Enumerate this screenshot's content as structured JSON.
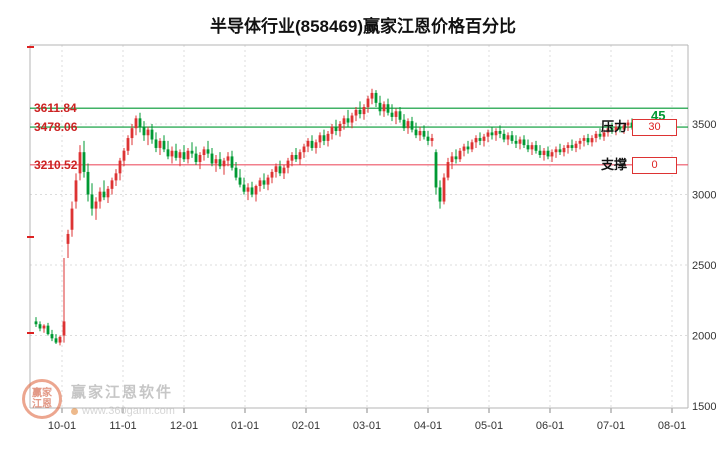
{
  "title": "半导体行业(858469)赢家江恩价格百分比",
  "annotations": {
    "gann_value_label": "45",
    "pressure_label": "压力",
    "pressure_value": "30",
    "support_label": "支撑",
    "support_value": "0"
  },
  "watermark": {
    "brand": "赢家江恩软件",
    "url": "www.360gann.com",
    "logo_text": "赢家江恩"
  },
  "chart_data": {
    "type": "candlestick",
    "title": "半导体行业(858469)赢家江恩价格百分比",
    "x_labels": [
      "10-01",
      "11-01",
      "12-01",
      "01-01",
      "02-01",
      "03-01",
      "04-01",
      "05-01",
      "06-01",
      "07-01",
      "08-01"
    ],
    "y_ticks": [
      3500,
      3000,
      2500,
      2000,
      1500
    ],
    "ylim": [
      1486,
      4060
    ],
    "up_color": "#dd3333",
    "down_color": "#009933",
    "grid": true,
    "legend": "none",
    "levels": [
      {
        "price": 3611.84,
        "color": "#009933",
        "role": "gann-45"
      },
      {
        "price": 3478.06,
        "color": "#009933",
        "role": "pressure-30"
      },
      {
        "price": 3210.52,
        "color": "#ee5566",
        "role": "support-0"
      }
    ],
    "candles": [
      [
        2100,
        2130,
        2060,
        2080
      ],
      [
        2080,
        2100,
        2030,
        2050
      ],
      [
        2050,
        2080,
        2020,
        2070
      ],
      [
        2070,
        2090,
        2000,
        2010
      ],
      [
        2010,
        2040,
        1960,
        1980
      ],
      [
        1980,
        2010,
        1940,
        1950
      ],
      [
        1950,
        2000,
        1930,
        1990
      ],
      [
        2000,
        2550,
        1950,
        2100
      ],
      [
        2650,
        2750,
        2550,
        2720
      ],
      [
        2750,
        2950,
        2700,
        2900
      ],
      [
        2950,
        3150,
        2900,
        3100
      ],
      [
        3150,
        3350,
        3100,
        3300
      ],
      [
        3300,
        3380,
        3120,
        3160
      ],
      [
        3160,
        3220,
        2950,
        3000
      ],
      [
        3000,
        3080,
        2850,
        2900
      ],
      [
        2900,
        2980,
        2820,
        2950
      ],
      [
        2950,
        3050,
        2900,
        3020
      ],
      [
        3020,
        3100,
        2960,
        2980
      ],
      [
        2980,
        3060,
        2940,
        3040
      ],
      [
        3040,
        3120,
        3000,
        3100
      ],
      [
        3100,
        3180,
        3060,
        3150
      ],
      [
        3150,
        3260,
        3100,
        3240
      ],
      [
        3240,
        3330,
        3200,
        3310
      ],
      [
        3310,
        3420,
        3280,
        3400
      ],
      [
        3400,
        3500,
        3350,
        3470
      ],
      [
        3470,
        3560,
        3420,
        3540
      ],
      [
        3540,
        3580,
        3440,
        3480
      ],
      [
        3480,
        3520,
        3380,
        3420
      ],
      [
        3420,
        3480,
        3350,
        3460
      ],
      [
        3460,
        3500,
        3360,
        3390
      ],
      [
        3390,
        3440,
        3300,
        3330
      ],
      [
        3330,
        3400,
        3280,
        3380
      ],
      [
        3380,
        3420,
        3300,
        3320
      ],
      [
        3320,
        3380,
        3250,
        3270
      ],
      [
        3270,
        3340,
        3220,
        3310
      ],
      [
        3310,
        3360,
        3240,
        3260
      ],
      [
        3260,
        3320,
        3200,
        3300
      ],
      [
        3300,
        3350,
        3230,
        3250
      ],
      [
        3250,
        3330,
        3220,
        3310
      ],
      [
        3310,
        3370,
        3260,
        3290
      ],
      [
        3290,
        3340,
        3210,
        3230
      ],
      [
        3230,
        3300,
        3180,
        3280
      ],
      [
        3280,
        3340,
        3240,
        3320
      ],
      [
        3320,
        3380,
        3260,
        3290
      ],
      [
        3290,
        3330,
        3200,
        3220
      ],
      [
        3220,
        3280,
        3160,
        3250
      ],
      [
        3250,
        3300,
        3180,
        3200
      ],
      [
        3200,
        3260,
        3140,
        3240
      ],
      [
        3240,
        3300,
        3200,
        3270
      ],
      [
        3270,
        3310,
        3170,
        3190
      ],
      [
        3190,
        3230,
        3100,
        3120
      ],
      [
        3120,
        3180,
        3050,
        3070
      ],
      [
        3070,
        3120,
        3000,
        3020
      ],
      [
        3020,
        3080,
        2960,
        3050
      ],
      [
        3050,
        3090,
        2980,
        3000
      ],
      [
        3000,
        3070,
        2950,
        3060
      ],
      [
        3060,
        3120,
        3020,
        3100
      ],
      [
        3100,
        3150,
        3040,
        3070
      ],
      [
        3070,
        3140,
        3030,
        3120
      ],
      [
        3120,
        3180,
        3080,
        3160
      ],
      [
        3160,
        3220,
        3120,
        3200
      ],
      [
        3200,
        3240,
        3130,
        3150
      ],
      [
        3150,
        3210,
        3110,
        3190
      ],
      [
        3190,
        3260,
        3150,
        3240
      ],
      [
        3240,
        3300,
        3200,
        3280
      ],
      [
        3280,
        3330,
        3230,
        3250
      ],
      [
        3250,
        3320,
        3210,
        3300
      ],
      [
        3300,
        3360,
        3260,
        3340
      ],
      [
        3340,
        3400,
        3300,
        3380
      ],
      [
        3380,
        3420,
        3310,
        3330
      ],
      [
        3330,
        3390,
        3290,
        3370
      ],
      [
        3370,
        3440,
        3330,
        3420
      ],
      [
        3420,
        3460,
        3350,
        3380
      ],
      [
        3380,
        3450,
        3340,
        3430
      ],
      [
        3430,
        3500,
        3390,
        3480
      ],
      [
        3480,
        3530,
        3420,
        3450
      ],
      [
        3450,
        3520,
        3410,
        3500
      ],
      [
        3500,
        3560,
        3460,
        3540
      ],
      [
        3540,
        3600,
        3480,
        3510
      ],
      [
        3510,
        3580,
        3470,
        3560
      ],
      [
        3560,
        3620,
        3520,
        3600
      ],
      [
        3600,
        3660,
        3540,
        3570
      ],
      [
        3570,
        3640,
        3530,
        3620
      ],
      [
        3620,
        3700,
        3580,
        3680
      ],
      [
        3680,
        3750,
        3640,
        3720
      ],
      [
        3720,
        3740,
        3620,
        3650
      ],
      [
        3650,
        3700,
        3560,
        3590
      ],
      [
        3590,
        3660,
        3550,
        3640
      ],
      [
        3640,
        3680,
        3560,
        3580
      ],
      [
        3580,
        3640,
        3520,
        3550
      ],
      [
        3550,
        3610,
        3500,
        3590
      ],
      [
        3590,
        3620,
        3510,
        3530
      ],
      [
        3530,
        3570,
        3450,
        3470
      ],
      [
        3470,
        3540,
        3430,
        3520
      ],
      [
        3520,
        3550,
        3440,
        3460
      ],
      [
        3460,
        3510,
        3400,
        3420
      ],
      [
        3420,
        3480,
        3380,
        3450
      ],
      [
        3450,
        3490,
        3390,
        3410
      ],
      [
        3410,
        3450,
        3350,
        3380
      ],
      [
        3380,
        3430,
        3340,
        3400
      ],
      [
        3300,
        3320,
        3000,
        3050
      ],
      [
        3050,
        3100,
        2900,
        2950
      ],
      [
        2950,
        3150,
        2930,
        3120
      ],
      [
        3120,
        3260,
        3100,
        3230
      ],
      [
        3230,
        3300,
        3180,
        3270
      ],
      [
        3270,
        3320,
        3220,
        3250
      ],
      [
        3250,
        3330,
        3230,
        3310
      ],
      [
        3310,
        3360,
        3270,
        3340
      ],
      [
        3340,
        3380,
        3290,
        3320
      ],
      [
        3320,
        3390,
        3300,
        3370
      ],
      [
        3370,
        3420,
        3330,
        3400
      ],
      [
        3400,
        3440,
        3350,
        3380
      ],
      [
        3380,
        3430,
        3340,
        3410
      ],
      [
        3410,
        3460,
        3370,
        3440
      ],
      [
        3440,
        3480,
        3390,
        3420
      ],
      [
        3420,
        3470,
        3380,
        3450
      ],
      [
        3450,
        3490,
        3400,
        3430
      ],
      [
        3430,
        3460,
        3370,
        3390
      ],
      [
        3390,
        3440,
        3350,
        3420
      ],
      [
        3420,
        3450,
        3360,
        3380
      ],
      [
        3380,
        3420,
        3330,
        3360
      ],
      [
        3360,
        3410,
        3320,
        3390
      ],
      [
        3390,
        3420,
        3330,
        3350
      ],
      [
        3350,
        3390,
        3300,
        3320
      ],
      [
        3320,
        3370,
        3280,
        3350
      ],
      [
        3350,
        3380,
        3290,
        3310
      ],
      [
        3310,
        3350,
        3260,
        3280
      ],
      [
        3280,
        3330,
        3240,
        3310
      ],
      [
        3310,
        3340,
        3250,
        3270
      ],
      [
        3270,
        3320,
        3230,
        3300
      ],
      [
        3300,
        3340,
        3260,
        3320
      ],
      [
        3320,
        3360,
        3280,
        3300
      ],
      [
        3300,
        3350,
        3270,
        3330
      ],
      [
        3330,
        3370,
        3290,
        3350
      ],
      [
        3350,
        3390,
        3310,
        3330
      ],
      [
        3330,
        3380,
        3300,
        3360
      ],
      [
        3360,
        3400,
        3320,
        3380
      ],
      [
        3380,
        3420,
        3340,
        3400
      ],
      [
        3400,
        3430,
        3350,
        3370
      ],
      [
        3370,
        3420,
        3340,
        3400
      ],
      [
        3400,
        3450,
        3370,
        3430
      ],
      [
        3430,
        3470,
        3390,
        3410
      ],
      [
        3410,
        3460,
        3380,
        3440
      ],
      [
        3440,
        3490,
        3410,
        3470
      ],
      [
        3470,
        3510,
        3430,
        3450
      ],
      [
        3450,
        3500,
        3420,
        3480
      ],
      [
        3480,
        3520,
        3440,
        3460
      ],
      [
        3460,
        3510,
        3430,
        3490
      ],
      [
        3490,
        3530,
        3450,
        3510
      ],
      [
        3510,
        3540,
        3460,
        3480
      ]
    ]
  }
}
